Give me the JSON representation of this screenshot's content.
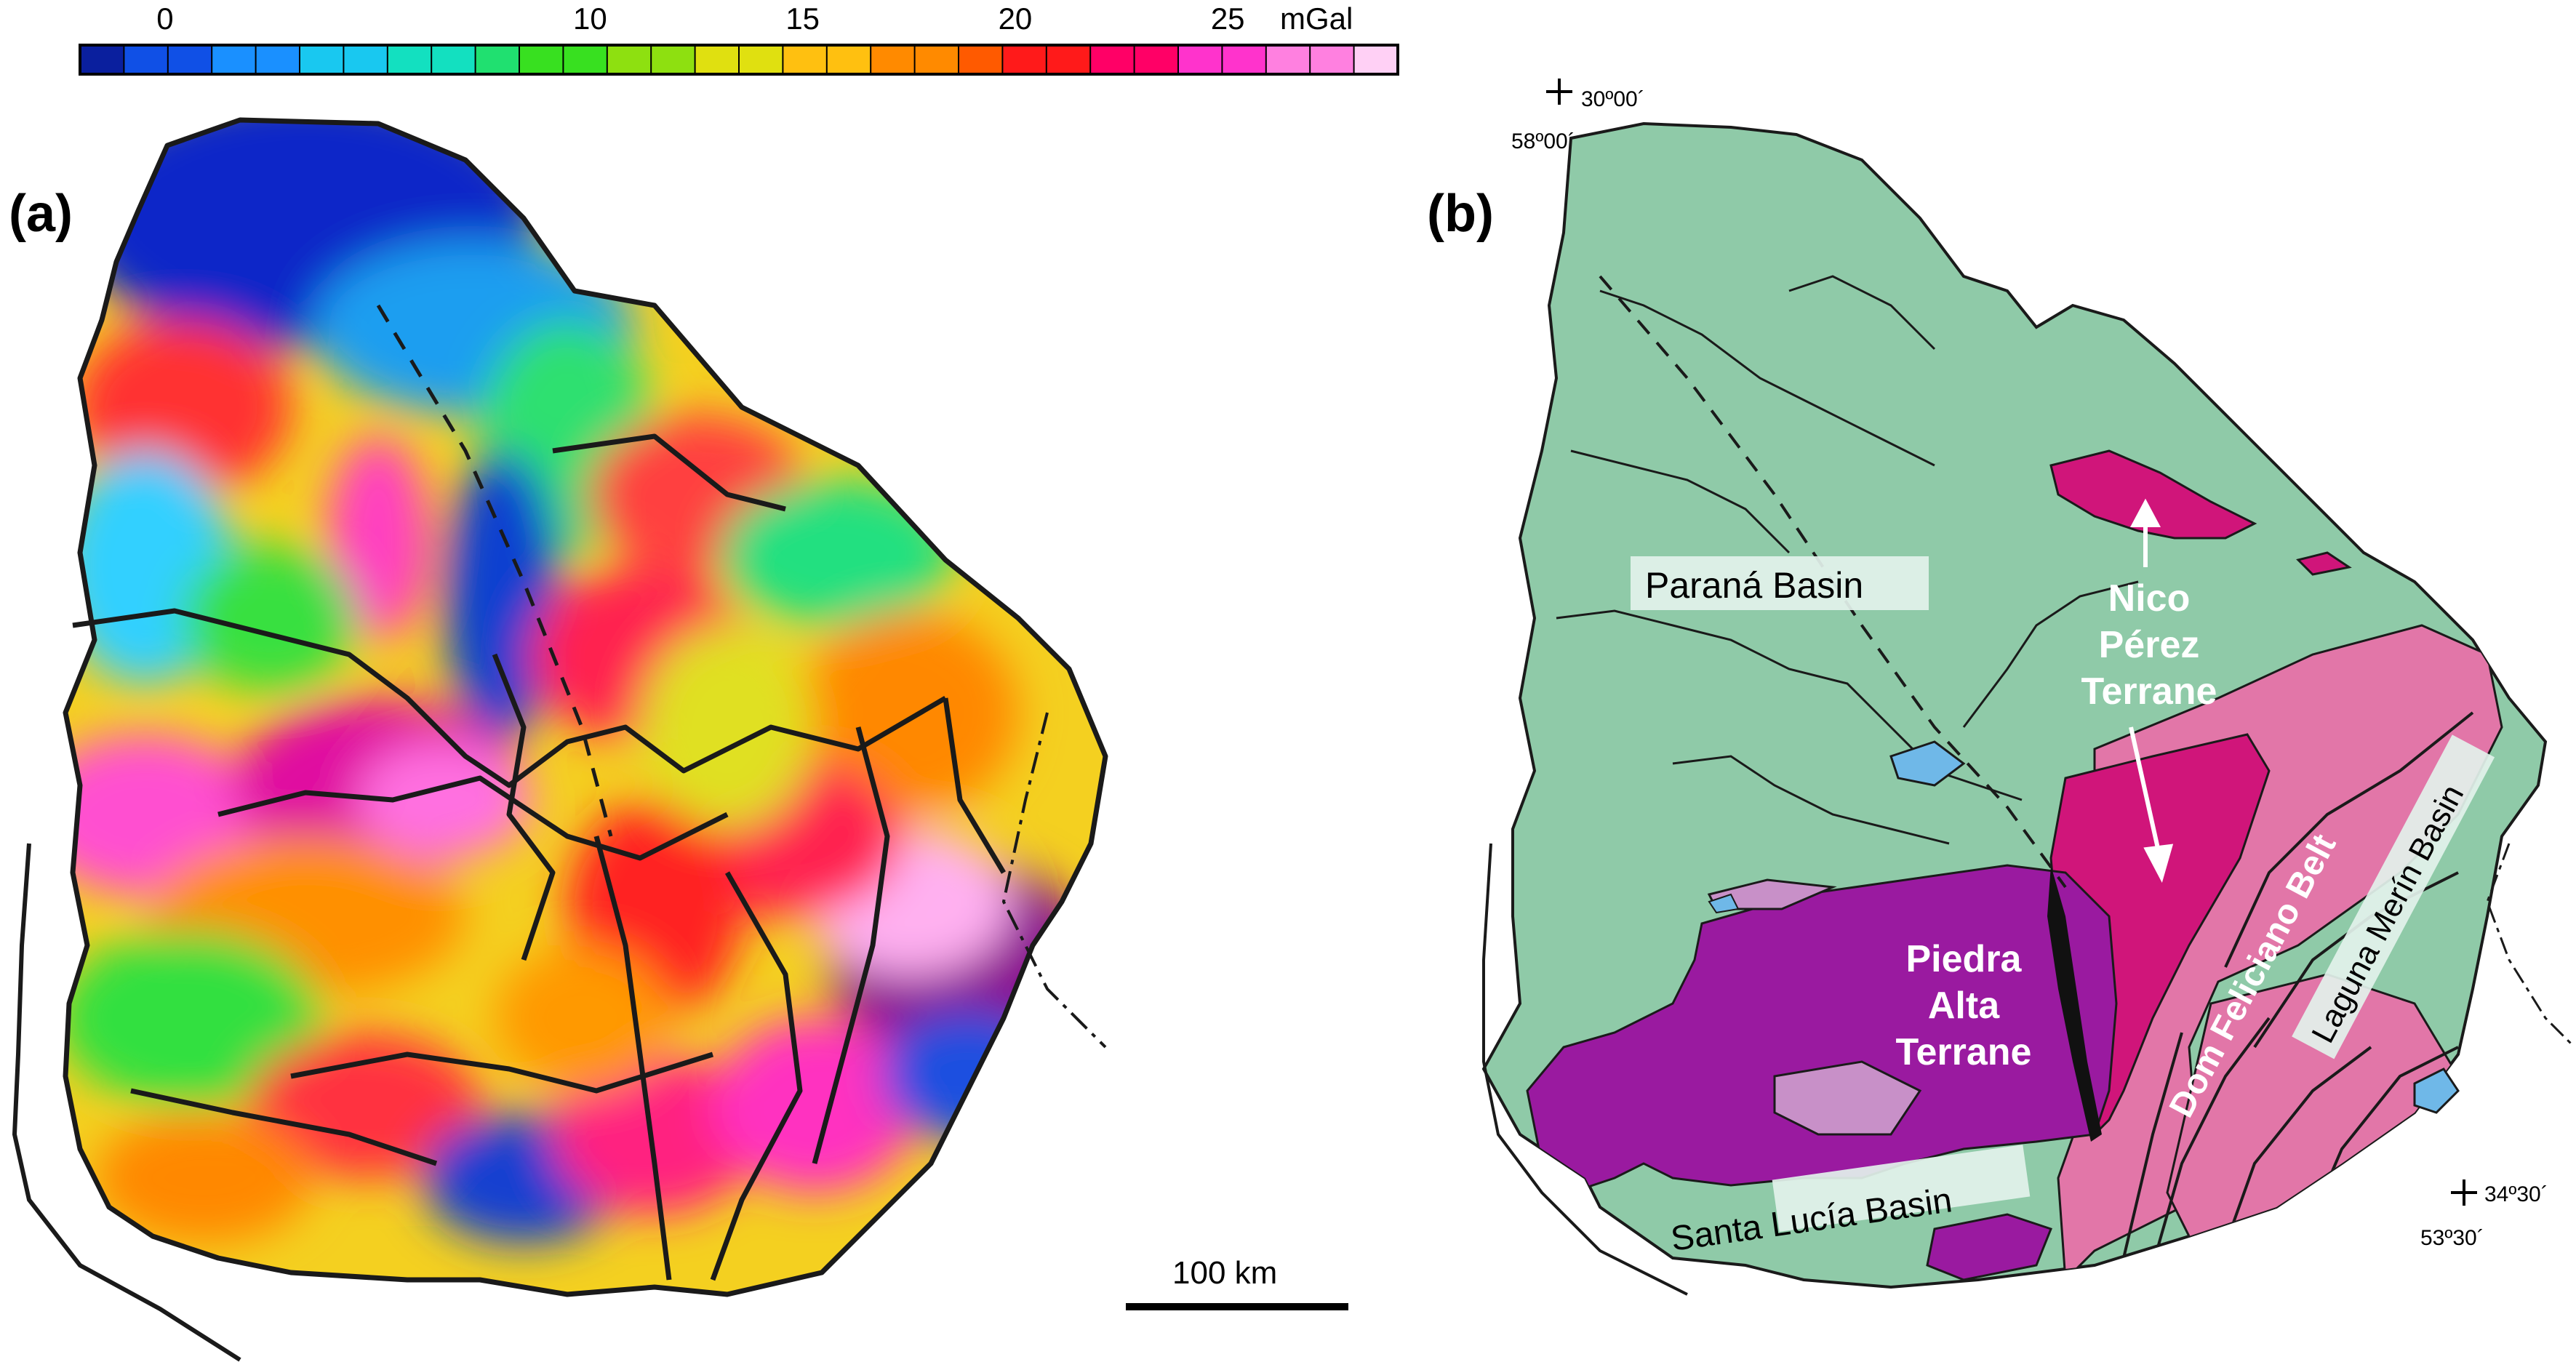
{
  "colorbar": {
    "ticks": [
      {
        "label": "0",
        "value": 0
      },
      {
        "label": "10",
        "value": 10
      },
      {
        "label": "15",
        "value": 15
      },
      {
        "label": "20",
        "value": 20
      },
      {
        "label": "25",
        "value": 25
      }
    ],
    "unit": "mGal",
    "colors": [
      "#0a1f9e",
      "#1050e6",
      "#1a90ff",
      "#19c8f0",
      "#13e0c0",
      "#20e070",
      "#38e020",
      "#8ee010",
      "#e0e010",
      "#ffc010",
      "#ff8a00",
      "#ff5a00",
      "#ff1a1a",
      "#ff0066",
      "#ff33cc",
      "#ff80e0",
      "#ffd0f5"
    ]
  },
  "panel_a": {
    "label": "(a)"
  },
  "panel_b": {
    "label": "(b)",
    "coord_nw": {
      "lat": "30º00´",
      "lon": "58º00´"
    },
    "coord_se": {
      "lat": "34º30´",
      "lon": "53º30´"
    },
    "labels": {
      "parana": "Paraná Basin",
      "nico_1": "Nico",
      "nico_2": "Pérez",
      "nico_3": "Terrane",
      "piedra_1": "Piedra",
      "piedra_2": "Alta",
      "piedra_3": "Terrane",
      "santa_lucia": "Santa Lucía Basin",
      "dom_feliciano": "Dom Feliciano Belt",
      "laguna_merin": "Laguna Merín Basin"
    },
    "colors": {
      "parana": "#8fcaa8",
      "piedra_alta": "#9a1aa0",
      "nico_perez": "#d0157a",
      "dom_feliciano": "#e276a8",
      "minor_purple": "#c890c8",
      "water": "#6fb8e8"
    }
  },
  "scale_bar": {
    "label": "100 km",
    "value_km": 100
  }
}
